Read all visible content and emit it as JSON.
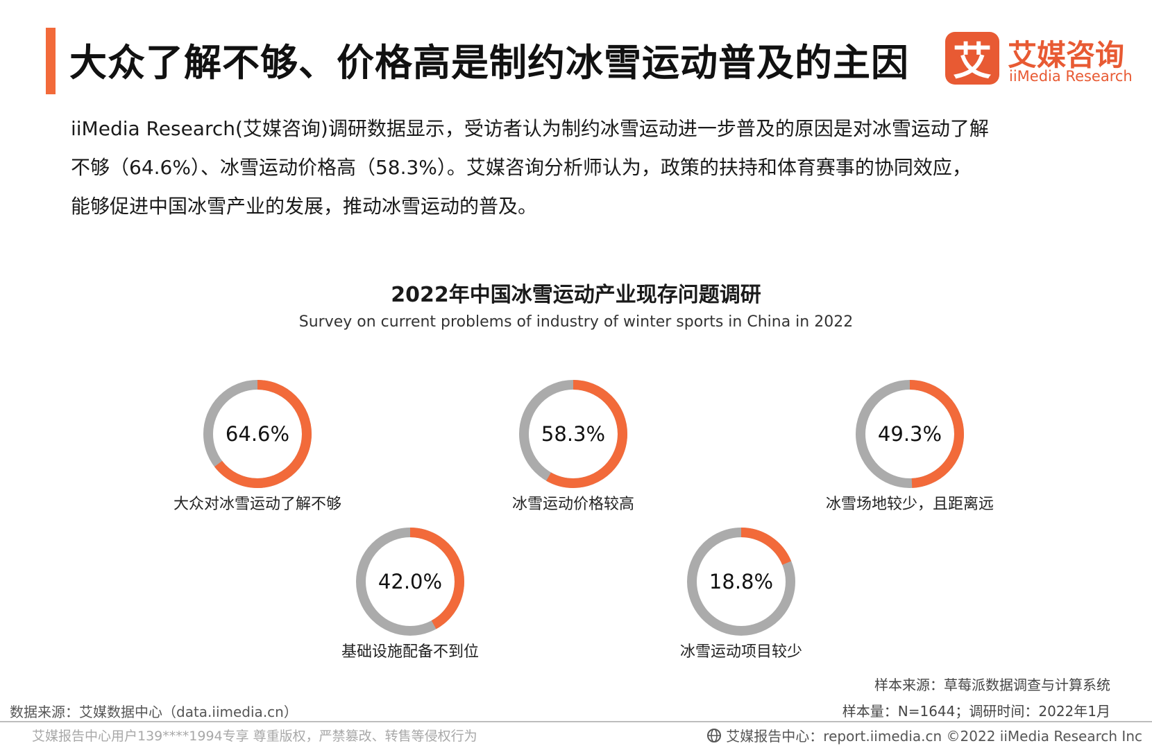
{
  "header": {
    "title": "大众了解不够、价格高是制约冰雪运动普及的主因",
    "accent_color": "#f26a3a"
  },
  "brand": {
    "badge_char": "艾",
    "name_cn": "艾媒咨询",
    "name_en": "iiMedia Research",
    "color": "#e85a33"
  },
  "summary": {
    "lines": [
      "iiMedia Research(艾媒咨询)调研数据显示，受访者认为制约冰雪运动进一步普及的原因是对冰雪运动了解",
      "不够（64.6%）、冰雪运动价格高（58.3%）。艾媒咨询分析师认为，政策的扶持和体育赛事的协同效应，",
      "能够促进中国冰雪产业的发展，推动冰雪运动的普及。"
    ]
  },
  "chart_data": {
    "type": "pie",
    "variant": "donut",
    "title": "2022年中国冰雪运动产业现存问题调研",
    "subtitle": "Survey on current problems of industry of winter sports in China in 2022",
    "categories": [
      "大众对冰雪运动了解不够",
      "冰雪运动价格较高",
      "冰雪场地较少，且距离远",
      "基础设施配备不到位",
      "冰雪运动项目较少"
    ],
    "values": [
      64.6,
      58.3,
      49.3,
      42.0,
      18.8
    ],
    "value_labels": [
      "64.6%",
      "58.3%",
      "49.3%",
      "42.0%",
      "18.8%"
    ],
    "unit": "%",
    "colors": {
      "value": "#f26a3a",
      "remainder": "#ababab"
    }
  },
  "notes": {
    "sample_source": "样本来源：草莓派数据调查与计算系统",
    "sample_size": "样本量：N=1644；调研时间：2022年1月",
    "data_source": "数据来源：艾媒数据中心（data.iimedia.cn）"
  },
  "footer": {
    "watermark": "艾媒报告中心用户139****1994专享 尊重版权，严禁篡改、转售等侵权行为",
    "report_center": "艾媒报告中心：report.iimedia.cn   ©2022  iiMedia Research  Inc",
    "icon": "globe-icon"
  }
}
